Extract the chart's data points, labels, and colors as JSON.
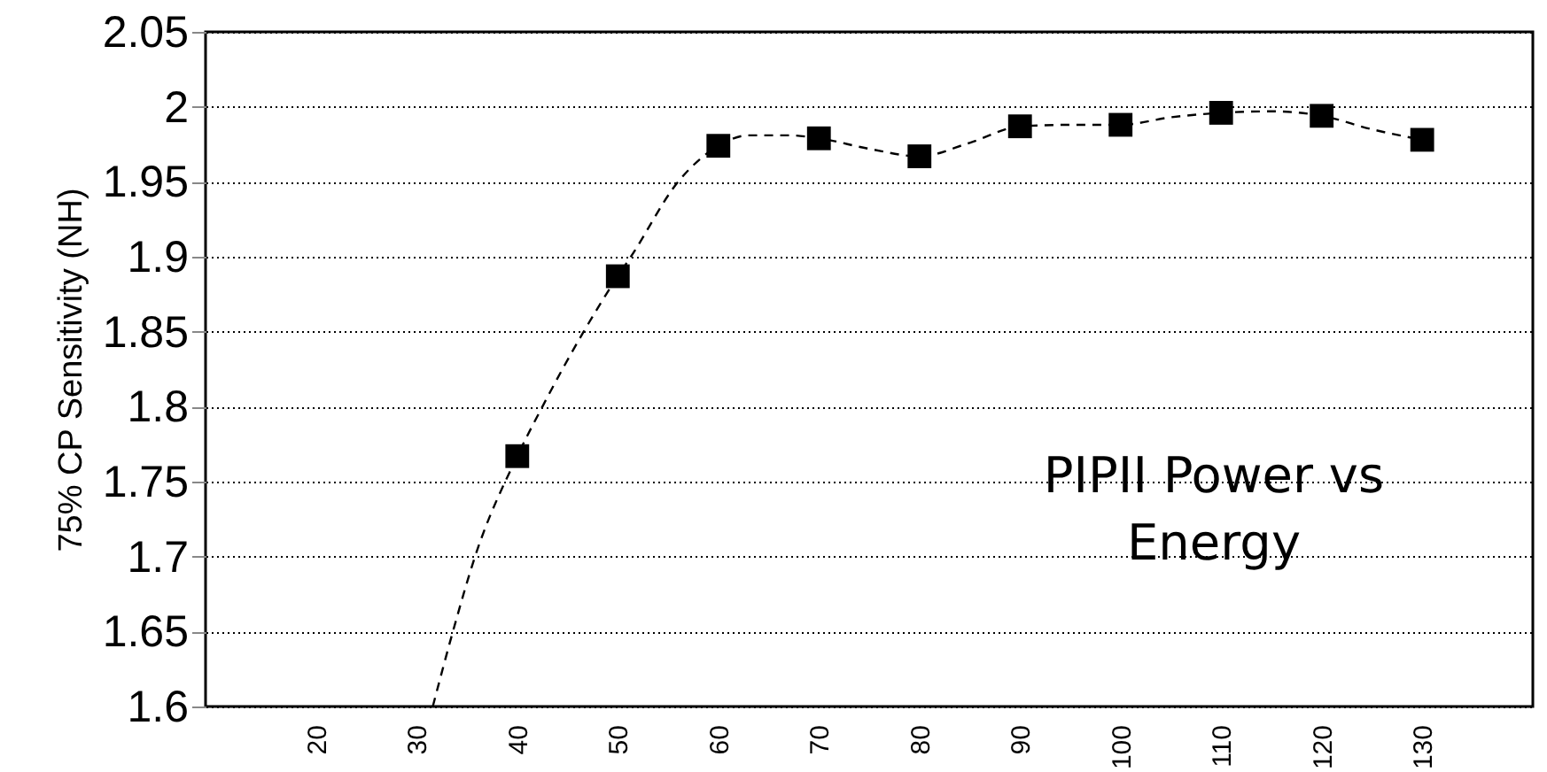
{
  "chart_data": {
    "type": "scatter",
    "ylabel": "75% CP Sensitivity (NH)",
    "x": [
      40,
      50,
      60,
      70,
      80,
      90,
      100,
      110,
      120,
      130
    ],
    "xlim": [
      9,
      141
    ],
    "xticks": [
      20,
      30,
      40,
      50,
      60,
      70,
      80,
      90,
      100,
      110,
      120,
      130
    ],
    "ylim": [
      1.6,
      2.05
    ],
    "yticks": [
      1.6,
      1.65,
      1.7,
      1.75,
      1.8,
      1.85,
      1.9,
      1.95,
      2,
      2.05
    ],
    "grid": "y",
    "annotations": [
      "PIPII Power vs Energy"
    ],
    "series": [
      {
        "marker": "square",
        "color": "#000000",
        "values": [
          1.767,
          1.887,
          1.974,
          1.979,
          1.967,
          1.987,
          1.988,
          1.996,
          1.994,
          1.978
        ]
      },
      {
        "type": "line",
        "marker": "none",
        "line_style": "dashed",
        "color": "#000000",
        "x": [
          31.6,
          33.6,
          35.8,
          40,
          42.5,
          46.6,
          50,
          51.3,
          56,
          60,
          63,
          67,
          70,
          75,
          80,
          85,
          90,
          95,
          100,
          105,
          110,
          115,
          120,
          125,
          130
        ],
        "values": [
          1.6,
          1.65,
          1.7,
          1.767,
          1.8,
          1.85,
          1.887,
          1.9,
          1.95,
          1.974,
          1.981,
          1.981,
          1.979,
          1.972,
          1.967,
          1.976,
          1.987,
          1.988,
          1.988,
          1.993,
          1.996,
          1.997,
          1.994,
          1.985,
          1.978
        ]
      }
    ]
  }
}
